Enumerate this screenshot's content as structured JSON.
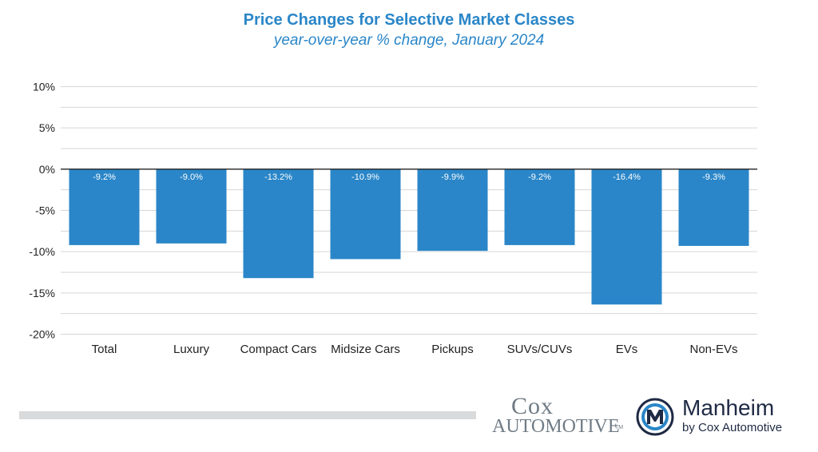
{
  "chart_data": {
    "type": "bar",
    "title": "Price Changes for Selective Market Classes",
    "subtitle": "year-over-year % change, January 2024",
    "categories": [
      "Total",
      "Luxury",
      "Compact Cars",
      "Midsize Cars",
      "Pickups",
      "SUVs/CUVs",
      "EVs",
      "Non-EVs"
    ],
    "values": [
      -9.2,
      -9.0,
      -13.2,
      -10.9,
      -9.9,
      -9.2,
      -16.4,
      -9.3
    ],
    "data_labels": [
      "-9.2%",
      "-9.0%",
      "-13.2%",
      "-10.9%",
      "-9.9%",
      "-9.2%",
      "-16.4%",
      "-9.3%"
    ],
    "ylim": [
      -20,
      10
    ],
    "yticks": [
      10,
      5,
      0,
      -5,
      -10,
      -15,
      -20
    ],
    "ytick_labels": [
      "10%",
      "5%",
      "0%",
      "-5%",
      "-10%",
      "-15%",
      "-20%"
    ],
    "xlabel": "",
    "ylabel": "",
    "grid": true,
    "bar_color": "#2a86c8",
    "title_color": "#2a86c8"
  },
  "logos": {
    "cox_top": "Cox",
    "cox_bottom": "AUTOMOTIVE",
    "cox_tm": "TM",
    "manheim_name": "Manheim",
    "manheim_sub": "by Cox Automotive"
  }
}
